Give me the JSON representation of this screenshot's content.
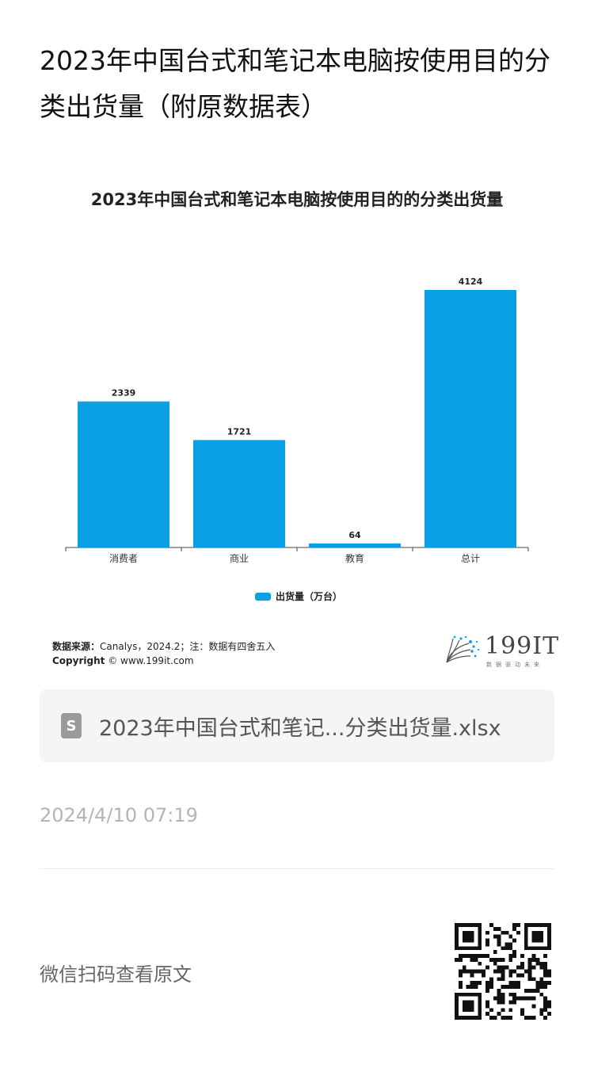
{
  "article": {
    "title": "2023年中国台式和笔记本电脑按使用目的分类出货量（附原数据表）",
    "timestamp": "2024/4/10 07:19",
    "qr_hint": "微信扫码查看原文"
  },
  "file": {
    "icon_letter": "S",
    "name": "2023年中国台式和笔记...分类出货量.xlsx",
    "icon": "spreadsheet-file-icon"
  },
  "source": {
    "label": "数据来源：",
    "text": "Canalys，2024.2；注：数据有四舍五入",
    "copyright_label": "Copyright",
    "copyright_text": " © www.199it.com"
  },
  "brand": {
    "name": "199IT",
    "tagline": "数据驱动未来"
  },
  "colors": {
    "bar": "#0aa0e6",
    "axis": "#444444"
  },
  "chart_data": {
    "type": "bar",
    "title": "2023年中国台式和笔记本电脑按使用目的的分类出货量",
    "categories": [
      "消费者",
      "商业",
      "教育",
      "总计"
    ],
    "series": [
      {
        "name": "出货量（万台）",
        "values": [
          2339,
          1721,
          64,
          4124
        ]
      }
    ],
    "xlabel": "",
    "ylabel": "",
    "ylim": [
      0,
      4500
    ],
    "grid": false,
    "legend": "bottom",
    "data_labels": true
  }
}
